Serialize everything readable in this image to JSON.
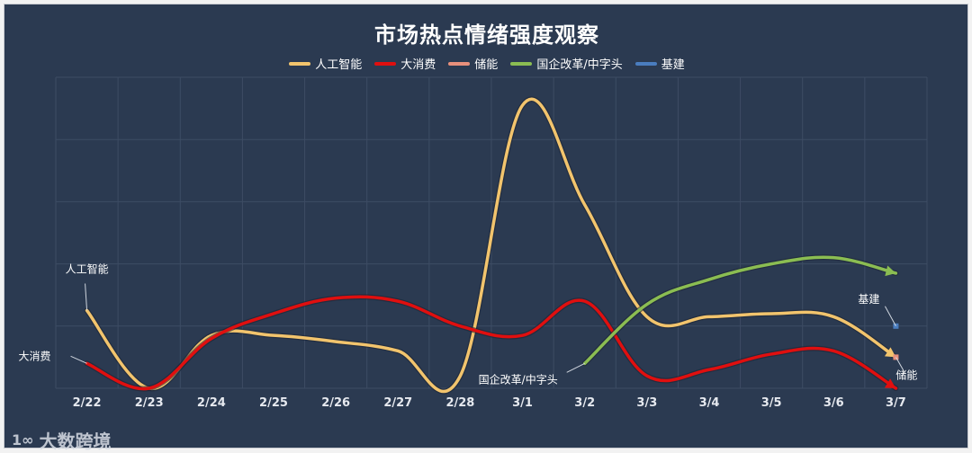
{
  "watermark": {
    "text": "大数跨境",
    "logo": "1∞"
  },
  "chart_data": {
    "type": "line",
    "title": "市场热点情绪强度观察",
    "xlabel": "",
    "ylabel": "",
    "categories": [
      "2/22",
      "2/23",
      "2/24",
      "2/25",
      "2/26",
      "2/27",
      "2/28",
      "3/1",
      "3/2",
      "3/3",
      "3/4",
      "3/5",
      "3/6",
      "3/7"
    ],
    "ylim": [
      0,
      100
    ],
    "grid": true,
    "legend_position": "top-center",
    "series": [
      {
        "name": "人工智能",
        "color": "#f2c46d",
        "values": [
          25,
          0,
          17,
          17,
          15,
          12,
          4,
          91,
          59,
          23,
          23,
          24,
          23,
          10
        ]
      },
      {
        "name": "大消费",
        "color": "#e00f0f",
        "values": [
          8,
          0,
          16,
          24,
          29,
          28,
          20,
          17,
          28,
          4,
          6,
          11,
          12,
          0
        ]
      },
      {
        "name": "储能",
        "color": "#e8907c",
        "values": [
          null,
          null,
          null,
          null,
          null,
          null,
          null,
          null,
          null,
          null,
          null,
          null,
          null,
          10
        ]
      },
      {
        "name": "国企改革/中字头",
        "color": "#8bbd52",
        "values": [
          null,
          null,
          null,
          null,
          null,
          null,
          null,
          null,
          8,
          27,
          35,
          40,
          42,
          37
        ]
      },
      {
        "name": "基建",
        "color": "#4a7dbf",
        "values": [
          null,
          null,
          null,
          null,
          null,
          null,
          null,
          null,
          null,
          null,
          null,
          null,
          null,
          20
        ]
      }
    ],
    "annotations": [
      {
        "text": "人工智能",
        "series": "人工智能"
      },
      {
        "text": "大消费",
        "series": "大消费"
      },
      {
        "text": "国企改革/中字头",
        "series": "国企改革/中字头"
      },
      {
        "text": "基建",
        "series": "基建"
      },
      {
        "text": "储能",
        "series": "储能"
      }
    ]
  }
}
